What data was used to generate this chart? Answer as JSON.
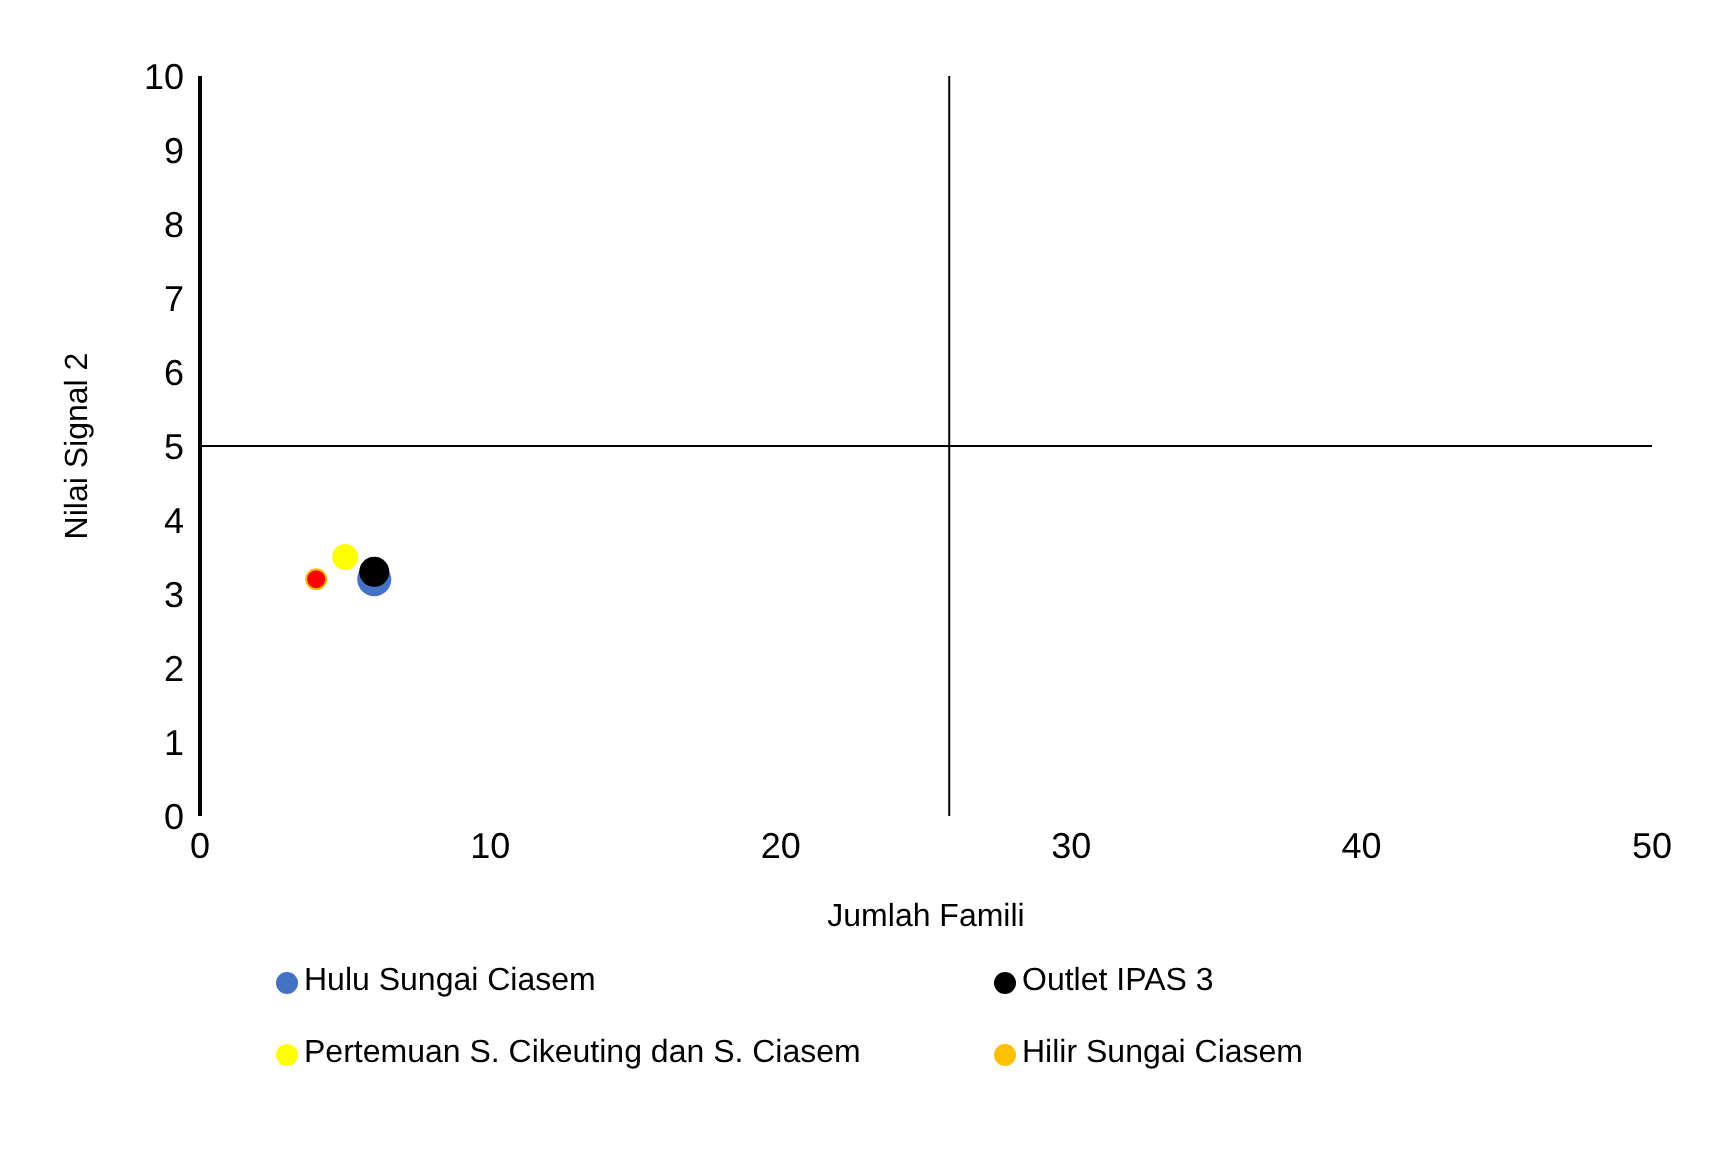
{
  "chart_data": {
    "type": "scatter",
    "xlabel": "Jumlah Famili",
    "ylabel": "Nilai Signal 2",
    "xlim": [
      0,
      50
    ],
    "xticks": [
      0,
      10,
      20,
      30,
      40,
      50
    ],
    "ylim": [
      0,
      10
    ],
    "yticks": [
      0,
      1,
      2,
      3,
      4,
      5,
      6,
      7,
      8,
      9,
      10
    ],
    "grid": false,
    "legend": "bottom",
    "marker": "circle",
    "series": [
      {
        "name": "Hulu Sungai Ciasem",
        "color": "#4472c4",
        "x": [
          6
        ],
        "values": [
          3.2
        ]
      },
      {
        "name": "Outlet IPAS 3",
        "color": "#000000",
        "x": [
          6
        ],
        "values": [
          3.3
        ]
      },
      {
        "name": "Pertemuan S. Cikeuting dan S. Ciasem",
        "color": "#ffff00",
        "x": [
          5
        ],
        "values": [
          3.5
        ]
      },
      {
        "name": "Hilir Sungai Ciasem",
        "color": "#ffc000",
        "x": [
          4
        ],
        "values": [
          3.2
        ]
      },
      {
        "color": "#ff0000",
        "x": [
          4
        ],
        "values": [
          3.2
        ]
      }
    ],
    "ref_lines": [
      {
        "axis": "y",
        "value": 5,
        "color": "#000000"
      },
      {
        "axis": "x",
        "value": 25.8,
        "color": "#000000"
      }
    ]
  }
}
